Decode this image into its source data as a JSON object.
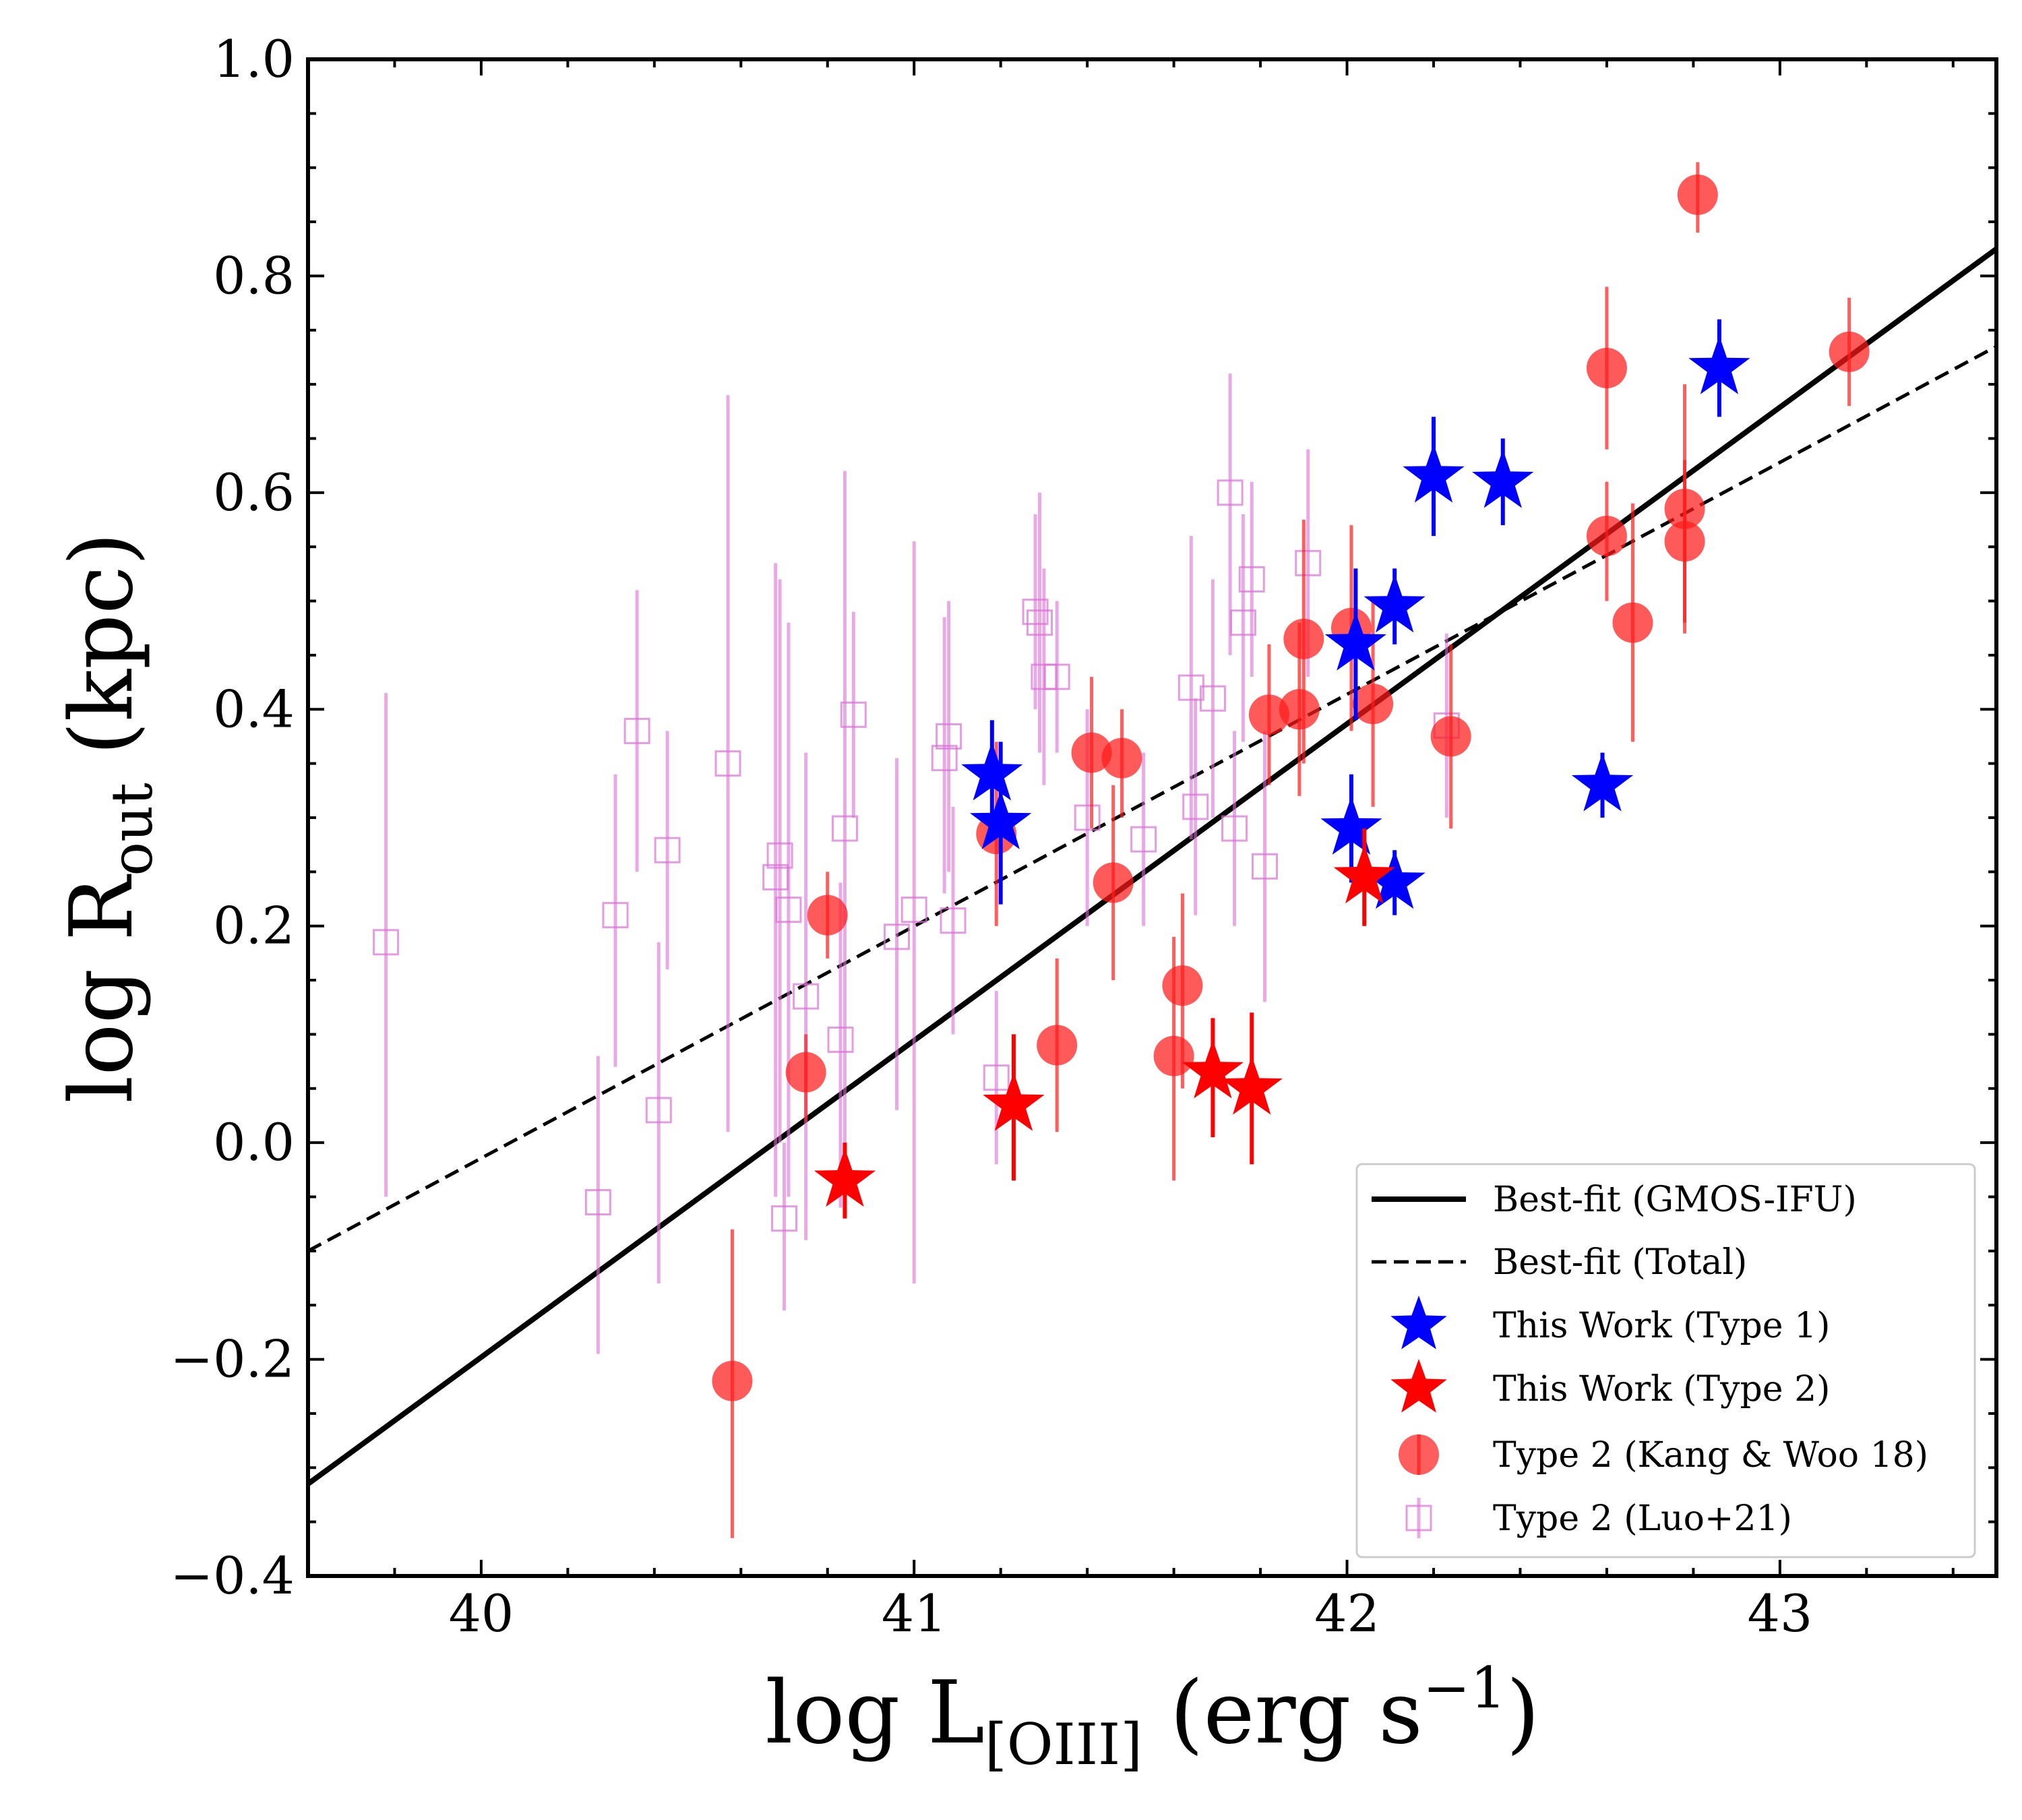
{
  "chart_data": {
    "type": "scatter",
    "xlabel": "log L",
    "xlabel_sub": "[OIII]",
    "xlabel_unit": " (erg s",
    "xlabel_sup": "−1",
    "xlabel_close": ")",
    "ylabel": "log R",
    "ylabel_sub": "out",
    "ylabel_unit": " (kpc)",
    "xlim": [
      39.6,
      43.5
    ],
    "ylim": [
      -0.4,
      1.0
    ],
    "xticks": [
      {
        "value": 40,
        "label": "40"
      },
      {
        "value": 41,
        "label": "41"
      },
      {
        "value": 42,
        "label": "42"
      },
      {
        "value": 43,
        "label": "43"
      }
    ],
    "yticks": [
      {
        "value": -0.4,
        "label": "−0.4"
      },
      {
        "value": -0.2,
        "label": "−0.2"
      },
      {
        "value": 0.0,
        "label": "0.0"
      },
      {
        "value": 0.2,
        "label": "0.2"
      },
      {
        "value": 0.4,
        "label": "0.4"
      },
      {
        "value": 0.6,
        "label": "0.6"
      },
      {
        "value": 0.8,
        "label": "0.8"
      },
      {
        "value": 1.0,
        "label": "1.0"
      }
    ],
    "fits": [
      {
        "name": "Best-fit (GMOS-IFU)",
        "style": "solid",
        "color": "#000000",
        "x": [
          39.6,
          43.5
        ],
        "y": [
          -0.315,
          0.825
        ]
      },
      {
        "name": "Best-fit (Total)",
        "style": "dashed",
        "color": "#000000",
        "x": [
          39.6,
          43.5
        ],
        "y": [
          -0.1,
          0.735
        ]
      }
    ],
    "series": [
      {
        "name": "Type 2 (Luo+21)",
        "marker": "square",
        "color": "#da70d6",
        "points": [
          {
            "x": 39.78,
            "y": 0.185,
            "lo": -0.05,
            "hi": 0.415
          },
          {
            "x": 40.27,
            "y": -0.055,
            "lo": -0.195,
            "hi": 0.08
          },
          {
            "x": 40.31,
            "y": 0.21,
            "lo": 0.07,
            "hi": 0.34
          },
          {
            "x": 40.36,
            "y": 0.38,
            "lo": 0.25,
            "hi": 0.51
          },
          {
            "x": 40.41,
            "y": 0.03,
            "lo": -0.13,
            "hi": 0.185
          },
          {
            "x": 40.43,
            "y": 0.27,
            "lo": 0.16,
            "hi": 0.38
          },
          {
            "x": 40.57,
            "y": 0.35,
            "lo": 0.01,
            "hi": 0.69
          },
          {
            "x": 40.68,
            "y": 0.245,
            "lo": -0.05,
            "hi": 0.535
          },
          {
            "x": 40.69,
            "y": 0.265,
            "lo": 0.0,
            "hi": 0.52
          },
          {
            "x": 40.7,
            "y": -0.07,
            "lo": -0.155,
            "hi": 0.0
          },
          {
            "x": 40.71,
            "y": 0.215,
            "lo": -0.05,
            "hi": 0.48
          },
          {
            "x": 40.75,
            "y": 0.135,
            "lo": -0.09,
            "hi": 0.36
          },
          {
            "x": 40.83,
            "y": 0.095,
            "lo": -0.06,
            "hi": 0.24
          },
          {
            "x": 40.84,
            "y": 0.29,
            "lo": -0.04,
            "hi": 0.62
          },
          {
            "x": 40.86,
            "y": 0.395,
            "lo": 0.3,
            "hi": 0.49
          },
          {
            "x": 40.96,
            "y": 0.19,
            "lo": 0.03,
            "hi": 0.355
          },
          {
            "x": 41.0,
            "y": 0.215,
            "lo": -0.13,
            "hi": 0.555
          },
          {
            "x": 41.07,
            "y": 0.355,
            "lo": 0.23,
            "hi": 0.485
          },
          {
            "x": 41.08,
            "y": 0.375,
            "lo": 0.25,
            "hi": 0.5
          },
          {
            "x": 41.09,
            "y": 0.205,
            "lo": 0.1,
            "hi": 0.31
          },
          {
            "x": 41.19,
            "y": 0.06,
            "lo": -0.02,
            "hi": 0.14
          },
          {
            "x": 41.28,
            "y": 0.49,
            "lo": 0.4,
            "hi": 0.58
          },
          {
            "x": 41.29,
            "y": 0.48,
            "lo": 0.36,
            "hi": 0.6
          },
          {
            "x": 41.3,
            "y": 0.43,
            "lo": 0.33,
            "hi": 0.53
          },
          {
            "x": 41.33,
            "y": 0.43,
            "lo": 0.36,
            "hi": 0.5
          },
          {
            "x": 41.4,
            "y": 0.3,
            "lo": 0.2,
            "hi": 0.4
          },
          {
            "x": 41.53,
            "y": 0.28,
            "lo": 0.2,
            "hi": 0.36
          },
          {
            "x": 41.64,
            "y": 0.42,
            "lo": 0.28,
            "hi": 0.56
          },
          {
            "x": 41.65,
            "y": 0.31,
            "lo": 0.21,
            "hi": 0.41
          },
          {
            "x": 41.69,
            "y": 0.41,
            "lo": 0.3,
            "hi": 0.52
          },
          {
            "x": 41.73,
            "y": 0.6,
            "lo": 0.45,
            "hi": 0.71
          },
          {
            "x": 41.74,
            "y": 0.29,
            "lo": 0.2,
            "hi": 0.38
          },
          {
            "x": 41.76,
            "y": 0.48,
            "lo": 0.37,
            "hi": 0.58
          },
          {
            "x": 41.78,
            "y": 0.52,
            "lo": 0.43,
            "hi": 0.61
          },
          {
            "x": 41.81,
            "y": 0.255,
            "lo": 0.13,
            "hi": 0.38
          },
          {
            "x": 41.91,
            "y": 0.535,
            "lo": 0.43,
            "hi": 0.64
          },
          {
            "x": 42.23,
            "y": 0.385,
            "lo": 0.3,
            "hi": 0.47
          }
        ]
      },
      {
        "name": "Type 2 (Kang & Woo 18)",
        "marker": "circle",
        "color": "#ff1a1a",
        "points": [
          {
            "x": 40.58,
            "y": -0.22,
            "lo": -0.365,
            "hi": -0.08
          },
          {
            "x": 40.75,
            "y": 0.065,
            "lo": 0.02,
            "hi": 0.1
          },
          {
            "x": 40.8,
            "y": 0.21,
            "lo": 0.17,
            "hi": 0.25
          },
          {
            "x": 41.19,
            "y": 0.285,
            "lo": 0.2,
            "hi": 0.37
          },
          {
            "x": 41.33,
            "y": 0.09,
            "lo": 0.01,
            "hi": 0.17
          },
          {
            "x": 41.41,
            "y": 0.36,
            "lo": 0.29,
            "hi": 0.43
          },
          {
            "x": 41.46,
            "y": 0.24,
            "lo": 0.15,
            "hi": 0.33
          },
          {
            "x": 41.48,
            "y": 0.355,
            "lo": 0.3,
            "hi": 0.4
          },
          {
            "x": 41.6,
            "y": 0.08,
            "lo": -0.035,
            "hi": 0.19
          },
          {
            "x": 41.62,
            "y": 0.145,
            "lo": 0.05,
            "hi": 0.23
          },
          {
            "x": 41.82,
            "y": 0.395,
            "lo": 0.33,
            "hi": 0.46
          },
          {
            "x": 41.89,
            "y": 0.4,
            "lo": 0.32,
            "hi": 0.48
          },
          {
            "x": 41.9,
            "y": 0.465,
            "lo": 0.35,
            "hi": 0.575
          },
          {
            "x": 42.01,
            "y": 0.475,
            "lo": 0.38,
            "hi": 0.57
          },
          {
            "x": 42.06,
            "y": 0.405,
            "lo": 0.31,
            "hi": 0.5
          },
          {
            "x": 42.24,
            "y": 0.375,
            "lo": 0.29,
            "hi": 0.46
          },
          {
            "x": 42.6,
            "y": 0.715,
            "lo": 0.64,
            "hi": 0.79
          },
          {
            "x": 42.6,
            "y": 0.56,
            "lo": 0.5,
            "hi": 0.61
          },
          {
            "x": 42.66,
            "y": 0.48,
            "lo": 0.37,
            "hi": 0.59
          },
          {
            "x": 42.78,
            "y": 0.585,
            "lo": 0.47,
            "hi": 0.7
          },
          {
            "x": 42.78,
            "y": 0.555,
            "lo": 0.48,
            "hi": 0.63
          },
          {
            "x": 42.81,
            "y": 0.875,
            "lo": 0.84,
            "hi": 0.905
          },
          {
            "x": 43.16,
            "y": 0.73,
            "lo": 0.68,
            "hi": 0.78
          }
        ]
      },
      {
        "name": "This Work (Type 1)",
        "marker": "star",
        "color": "#0000ff",
        "points": [
          {
            "x": 41.18,
            "y": 0.34,
            "lo": 0.29,
            "hi": 0.39
          },
          {
            "x": 41.2,
            "y": 0.295,
            "lo": 0.22,
            "hi": 0.37
          },
          {
            "x": 42.01,
            "y": 0.29,
            "lo": 0.24,
            "hi": 0.34
          },
          {
            "x": 42.02,
            "y": 0.46,
            "lo": 0.39,
            "hi": 0.53
          },
          {
            "x": 42.11,
            "y": 0.495,
            "lo": 0.46,
            "hi": 0.53
          },
          {
            "x": 42.11,
            "y": 0.24,
            "lo": 0.21,
            "hi": 0.27
          },
          {
            "x": 42.2,
            "y": 0.615,
            "lo": 0.56,
            "hi": 0.67
          },
          {
            "x": 42.36,
            "y": 0.61,
            "lo": 0.57,
            "hi": 0.65
          },
          {
            "x": 42.59,
            "y": 0.33,
            "lo": 0.3,
            "hi": 0.36
          },
          {
            "x": 42.86,
            "y": 0.715,
            "lo": 0.67,
            "hi": 0.76
          }
        ]
      },
      {
        "name": "This Work (Type 2)",
        "marker": "star",
        "color": "#ff0000",
        "points": [
          {
            "x": 40.84,
            "y": -0.035,
            "lo": -0.07,
            "hi": 0.0
          },
          {
            "x": 41.23,
            "y": 0.035,
            "lo": -0.035,
            "hi": 0.1
          },
          {
            "x": 41.69,
            "y": 0.065,
            "lo": 0.005,
            "hi": 0.115
          },
          {
            "x": 41.78,
            "y": 0.05,
            "lo": -0.02,
            "hi": 0.12
          },
          {
            "x": 42.04,
            "y": 0.245,
            "lo": 0.2,
            "hi": 0.29
          }
        ]
      }
    ],
    "legend": {
      "location": "lower-right",
      "entries": [
        "Best-fit (GMOS-IFU)",
        "Best-fit (Total)",
        "This Work (Type 1)",
        "This Work (Type 2)",
        "Type 2 (Kang & Woo 18)",
        "Type 2 (Luo+21)"
      ]
    }
  }
}
